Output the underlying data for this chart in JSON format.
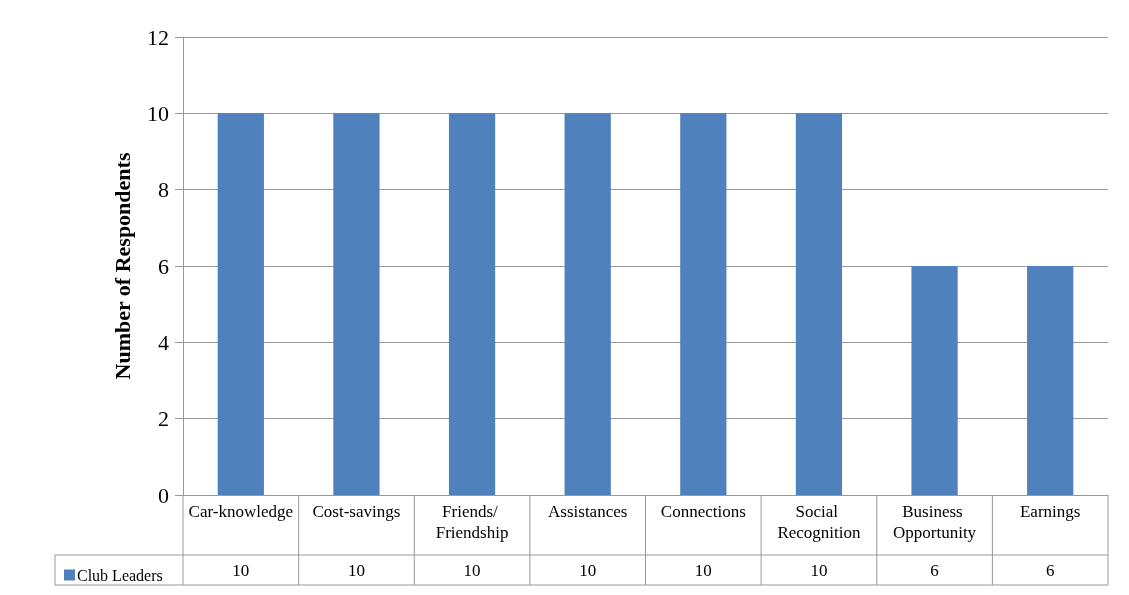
{
  "chart_data": {
    "type": "bar",
    "ylabel": "Number of Respondents",
    "categories": [
      "Car-knowledge",
      "Cost-savings",
      "Friends/ Friendship",
      "Assistances",
      "Connections",
      "Social Recognition",
      "Business Opportunity",
      "Earnings"
    ],
    "series": [
      {
        "name": "Club Leaders",
        "color": "#4f81bd",
        "values": [
          10,
          10,
          10,
          10,
          10,
          10,
          6,
          6
        ]
      }
    ],
    "ylim": [
      0,
      12
    ],
    "yticks": [
      0,
      2,
      4,
      6,
      8,
      10,
      12
    ],
    "grid": "y",
    "legend": "bottom left",
    "data_labels": true
  }
}
